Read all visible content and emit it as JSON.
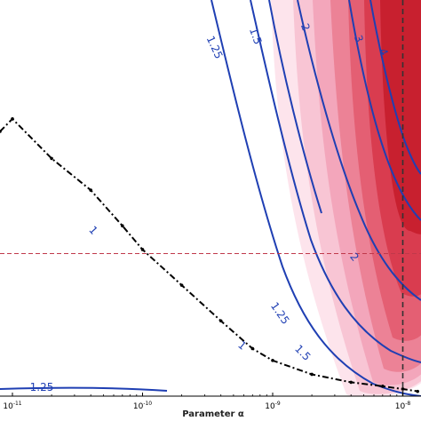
{
  "chart_data": {
    "type": "contour",
    "xlabel": "Parameter α",
    "x_scale": "log",
    "x_ticks": [
      {
        "mantissa": "10",
        "exp": "-11",
        "value": 1e-11
      },
      {
        "mantissa": "10",
        "exp": "-10",
        "value": 1e-10
      },
      {
        "mantissa": "10",
        "exp": "-9",
        "value": 1e-09
      },
      {
        "mantissa": "10",
        "exp": "-8",
        "value": 1e-08
      }
    ],
    "filled_levels": {
      "colormap": "white-to-red",
      "colors": [
        "#fde4ec",
        "#f8c5d4",
        "#f3a6bb",
        "#ec8296",
        "#e45f73",
        "#d93c4f",
        "#c8202f"
      ]
    },
    "contour_lines": {
      "color": "#1f3fb3",
      "levels": [
        {
          "label": "1",
          "label_at": [
            {
              "x": 3e-11,
              "y": 0.48
            },
            {
              "x": 1.2e-09,
              "y": 0.12
            }
          ]
        },
        {
          "label": "1.25",
          "label_at": [
            {
              "x": 1.5e-09,
              "y": 0.31
            },
            {
              "x": 3e-11,
              "y": 0.025
            }
          ]
        },
        {
          "label": "1.5",
          "label_at": [
            {
              "x": 2.4e-09,
              "y": 0.29
            },
            {
              "x": 1.2e-09,
              "y": 0.93
            }
          ]
        },
        {
          "label": "2",
          "label_at": [
            {
              "x": 6e-09,
              "y": 0.45
            },
            {
              "x": 1.7e-09,
              "y": 0.95
            }
          ]
        },
        {
          "label": "3",
          "label_at": [
            {
              "x": 4.2e-09,
              "y": 0.92
            }
          ]
        },
        {
          "label": "4",
          "label_at": [
            {
              "x": 5.5e-09,
              "y": 0.88
            }
          ]
        }
      ]
    },
    "dashdot_curve": {
      "color": "#000000",
      "x": [
        1e-11,
        2e-11,
        4e-11,
        7e-11,
        1e-10,
        2e-10,
        4e-10,
        7e-10,
        1e-09,
        2e-09,
        4e-09,
        7e-09,
        1e-08,
        1.3e-08
      ],
      "y": [
        0.7,
        0.6,
        0.52,
        0.43,
        0.37,
        0.28,
        0.19,
        0.12,
        0.09,
        0.055,
        0.035,
        0.025,
        0.018,
        0.012
      ]
    },
    "reference_lines": [
      {
        "orientation": "horizontal",
        "y": 0.36,
        "style": "dashed",
        "color": "#c0394b"
      },
      {
        "orientation": "vertical",
        "x": 1e-08,
        "style": "dashed",
        "color": "#333333"
      }
    ],
    "xlim": [
      8e-12,
      1.5e-08
    ],
    "ylim": [
      0,
      1
    ]
  }
}
